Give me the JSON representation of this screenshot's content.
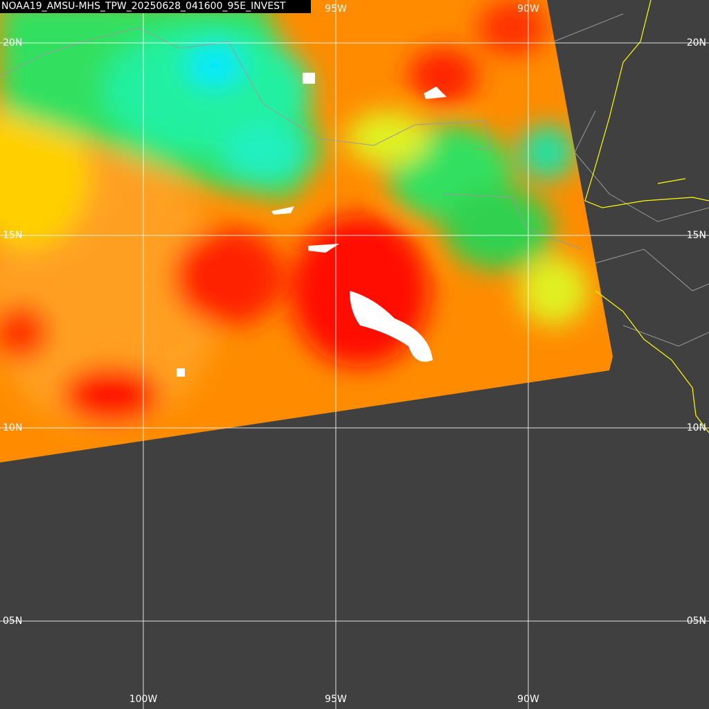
{
  "title": "NOAA19_AMSU-MHS_TPW_20250628_041600_95E_INVEST",
  "lon_labels_top": [
    "95W",
    "90W"
  ],
  "lon_labels_bottom": [
    "100W",
    "95W",
    "90W"
  ],
  "lat_labels_left": [
    "20N",
    "15N",
    "10N",
    "05N"
  ],
  "lat_labels_right": [
    "20N",
    "15N",
    "10N",
    "05N"
  ]
}
